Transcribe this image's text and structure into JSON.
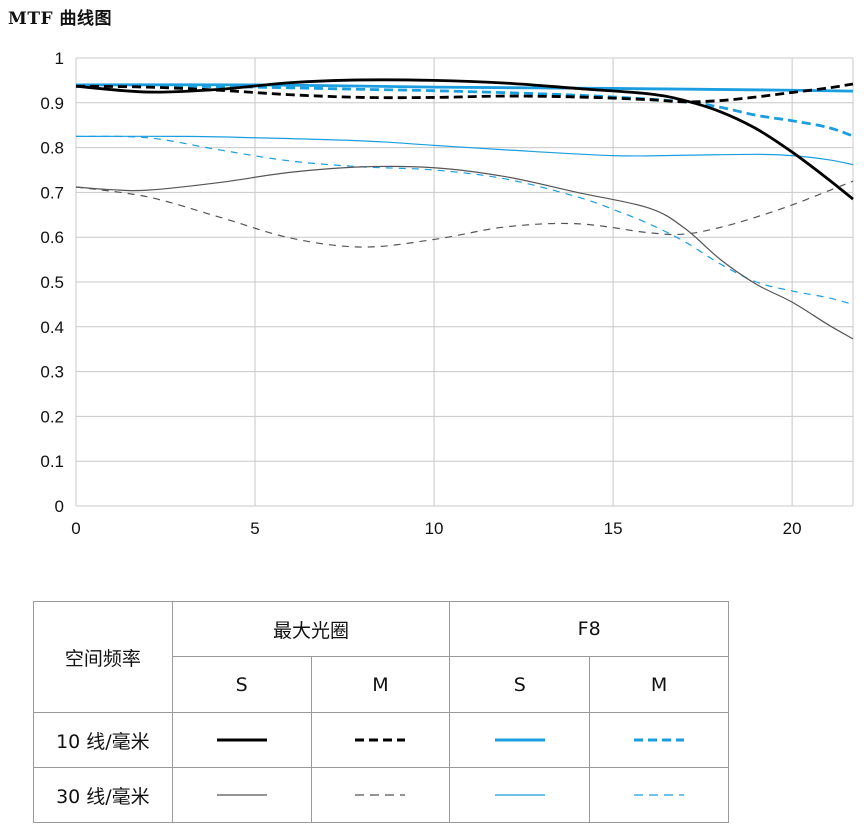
{
  "title": "MTF 曲线图",
  "chart_data": {
    "type": "line",
    "x_ticks": [
      0,
      5,
      10,
      15,
      20
    ],
    "y_ticks": [
      0,
      0.1,
      0.2,
      0.3,
      0.4,
      0.5,
      0.6,
      0.7,
      0.8,
      0.9,
      1
    ],
    "y_tick_labels": [
      "0",
      "0.1",
      "0.2",
      "0.3",
      "0.4",
      "0.5",
      "0.6",
      "0.7",
      "0.8",
      "0.9",
      "1"
    ],
    "xlim": [
      0,
      21.7
    ],
    "ylim": [
      0,
      1
    ],
    "grid": true,
    "series": [
      {
        "id": "s10_f8",
        "color": "#1a9ee0",
        "style": "solid",
        "weight": "thick",
        "x": [
          0,
          5,
          10,
          15,
          20,
          21.7
        ],
        "y": [
          0.94,
          0.94,
          0.935,
          0.932,
          0.928,
          0.926
        ]
      },
      {
        "id": "m10_f8",
        "color": "#1a9ee0",
        "style": "dashed",
        "weight": "thick",
        "x": [
          0,
          3,
          5,
          8,
          10,
          13,
          15,
          17,
          18,
          19,
          20,
          21,
          21.7
        ],
        "y": [
          0.94,
          0.937,
          0.935,
          0.93,
          0.927,
          0.92,
          0.913,
          0.902,
          0.89,
          0.872,
          0.86,
          0.845,
          0.826
        ]
      },
      {
        "id": "s30_f8",
        "color": "#1a9ee0",
        "style": "solid",
        "weight": "thin",
        "x": [
          0,
          3,
          5,
          8,
          10,
          12,
          15,
          17,
          19,
          20,
          21,
          21.7
        ],
        "y": [
          0.825,
          0.825,
          0.822,
          0.815,
          0.805,
          0.795,
          0.782,
          0.783,
          0.785,
          0.782,
          0.773,
          0.762
        ]
      },
      {
        "id": "m30_f8",
        "color": "#1a9ee0",
        "style": "dashed",
        "weight": "thin",
        "x": [
          0,
          2,
          4,
          6,
          8,
          10,
          12,
          14,
          15,
          16,
          17,
          18,
          19,
          20,
          21,
          21.7
        ],
        "y": [
          0.825,
          0.822,
          0.795,
          0.77,
          0.757,
          0.75,
          0.73,
          0.69,
          0.662,
          0.63,
          0.59,
          0.54,
          0.5,
          0.48,
          0.465,
          0.45
        ]
      },
      {
        "id": "s10_max",
        "color": "#000000",
        "style": "solid",
        "weight": "thick",
        "x": [
          0,
          2,
          4,
          6,
          8,
          10,
          12,
          14,
          16,
          17,
          18,
          19,
          20,
          21,
          21.7
        ],
        "y": [
          0.937,
          0.924,
          0.93,
          0.945,
          0.951,
          0.95,
          0.944,
          0.932,
          0.92,
          0.905,
          0.88,
          0.842,
          0.79,
          0.73,
          0.685
        ]
      },
      {
        "id": "m10_max",
        "color": "#000000",
        "style": "dashed",
        "weight": "thick",
        "x": [
          0,
          2,
          4,
          6,
          8,
          10,
          12,
          14,
          16,
          17,
          18,
          19,
          20,
          21,
          21.7
        ],
        "y": [
          0.937,
          0.935,
          0.928,
          0.918,
          0.912,
          0.912,
          0.915,
          0.913,
          0.907,
          0.902,
          0.905,
          0.913,
          0.923,
          0.933,
          0.942
        ]
      },
      {
        "id": "s30_max",
        "color": "#555555",
        "style": "solid",
        "weight": "thin",
        "x": [
          0,
          1,
          2,
          4,
          6,
          8,
          10,
          12,
          14,
          16,
          17,
          18,
          19,
          20,
          21,
          21.7
        ],
        "y": [
          0.712,
          0.706,
          0.705,
          0.722,
          0.745,
          0.757,
          0.755,
          0.735,
          0.7,
          0.665,
          0.62,
          0.55,
          0.495,
          0.455,
          0.405,
          0.373
        ]
      },
      {
        "id": "m30_max",
        "color": "#555555",
        "style": "dashed",
        "weight": "thin",
        "x": [
          0,
          2,
          4,
          6,
          8,
          10,
          12,
          14,
          16,
          17,
          18,
          19,
          20,
          21,
          21.7
        ],
        "y": [
          0.712,
          0.69,
          0.645,
          0.598,
          0.578,
          0.595,
          0.623,
          0.63,
          0.61,
          0.607,
          0.622,
          0.645,
          0.672,
          0.703,
          0.725
        ]
      }
    ]
  },
  "legend": {
    "corner_header": "空间频率",
    "group_max": "最大光圈",
    "group_f8": "F8",
    "s": "S",
    "m": "M",
    "row10": "10 线/毫米",
    "row30": "30 线/毫米"
  }
}
